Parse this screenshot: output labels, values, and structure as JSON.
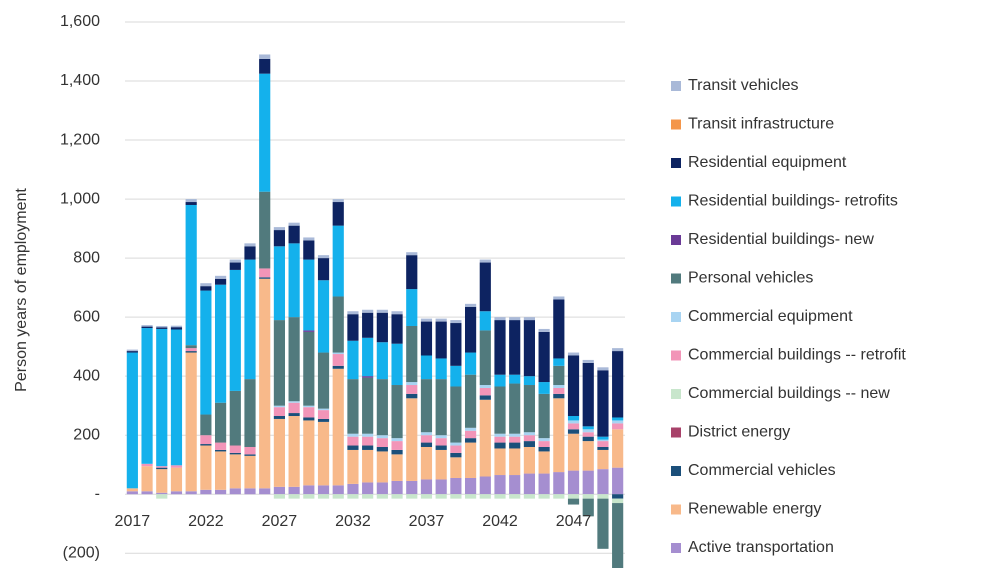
{
  "chart_data": {
    "type": "stacked_bar",
    "y_label": "Person years of employment",
    "categories": [
      2017,
      null,
      null,
      null,
      null,
      2022,
      null,
      null,
      null,
      null,
      2027,
      null,
      null,
      null,
      null,
      2032,
      null,
      null,
      null,
      null,
      2037,
      null,
      null,
      null,
      null,
      2042,
      null,
      null,
      null,
      null,
      2047,
      null,
      null,
      null
    ],
    "ylim": [
      -250,
      1600
    ],
    "yticks": [
      {
        "value": -200,
        "label": "(200)"
      },
      {
        "value": 0,
        "label": "-"
      },
      200,
      400,
      600,
      800,
      {
        "value": 1000,
        "label": "1,000"
      },
      {
        "value": 1200,
        "label": "1,200"
      },
      {
        "value": 1400,
        "label": "1,400"
      },
      {
        "value": 1600,
        "label": "1,600"
      }
    ],
    "grid": true,
    "legend": "right",
    "series": [
      {
        "name": "Transit vehicles",
        "color": "#a9b9d8",
        "values": [
          5,
          5,
          5,
          5,
          10,
          10,
          10,
          10,
          10,
          15,
          10,
          10,
          10,
          10,
          10,
          10,
          10,
          10,
          10,
          10,
          10,
          10,
          10,
          10,
          10,
          10,
          10,
          10,
          10,
          10,
          10,
          10,
          10,
          10
        ]
      },
      {
        "name": "Transit infrastructure",
        "color": "#f4964a",
        "values": [
          0,
          0,
          0,
          0,
          0,
          0,
          0,
          0,
          0,
          0,
          0,
          0,
          0,
          0,
          0,
          0,
          0,
          0,
          0,
          0,
          0,
          0,
          0,
          0,
          0,
          0,
          0,
          0,
          0,
          0,
          0,
          0,
          0,
          0
        ]
      },
      {
        "name": "Residential equipment",
        "color": "#0d2361",
        "values": [
          5,
          5,
          5,
          8,
          10,
          15,
          20,
          25,
          45,
          50,
          55,
          60,
          65,
          75,
          80,
          90,
          85,
          100,
          100,
          115,
          115,
          125,
          145,
          155,
          165,
          185,
          185,
          190,
          170,
          200,
          205,
          215,
          225,
          225
        ]
      },
      {
        "name": "Residential buildings- retrofits",
        "color": "#14b1ec",
        "values": [
          460,
          460,
          465,
          460,
          475,
          420,
          400,
          410,
          405,
          400,
          250,
          250,
          240,
          245,
          240,
          130,
          130,
          125,
          140,
          125,
          80,
          70,
          70,
          75,
          65,
          40,
          30,
          30,
          40,
          25,
          15,
          10,
          10,
          10
        ]
      },
      {
        "name": "Residential buildings- new",
        "color": "#6a3a96",
        "values": [
          0,
          0,
          0,
          0,
          0,
          0,
          0,
          0,
          0,
          0,
          0,
          0,
          5,
          0,
          0,
          0,
          5,
          0,
          0,
          0,
          0,
          0,
          0,
          0,
          0,
          0,
          0,
          0,
          0,
          0,
          0,
          0,
          0,
          0
        ]
      },
      {
        "name": "Personal vehicles",
        "color": "#517a7d",
        "values": [
          0,
          0,
          0,
          0,
          10,
          70,
          135,
          185,
          230,
          260,
          290,
          285,
          250,
          190,
          190,
          185,
          190,
          190,
          180,
          190,
          180,
          190,
          190,
          180,
          185,
          160,
          170,
          160,
          150,
          65,
          -20,
          -60,
          -170,
          -250
        ]
      },
      {
        "name": "Commercial equipment",
        "color": "#a8d4f2",
        "values": [
          0,
          0,
          0,
          0,
          0,
          0,
          0,
          0,
          0,
          0,
          5,
          5,
          5,
          5,
          5,
          10,
          10,
          10,
          10,
          10,
          10,
          10,
          10,
          10,
          10,
          10,
          10,
          10,
          10,
          10,
          10,
          10,
          5,
          10
        ]
      },
      {
        "name": "Commercial buildings -- retrofit",
        "color": "#f295b8",
        "values": [
          0,
          8,
          5,
          8,
          10,
          30,
          25,
          25,
          25,
          30,
          30,
          35,
          35,
          30,
          40,
          30,
          30,
          30,
          30,
          30,
          25,
          25,
          25,
          25,
          25,
          20,
          20,
          20,
          20,
          20,
          20,
          15,
          20,
          20
        ]
      },
      {
        "name": "Commercial buildings -- new",
        "color": "#c8e6cc",
        "values": [
          0,
          0,
          -15,
          0,
          0,
          0,
          0,
          0,
          0,
          0,
          -15,
          -15,
          -15,
          -15,
          -15,
          -15,
          -15,
          -15,
          -15,
          -15,
          -15,
          -15,
          -15,
          -15,
          -15,
          -15,
          -15,
          -15,
          -15,
          -15,
          -15,
          -15,
          -15,
          -15
        ]
      },
      {
        "name": "District energy",
        "color": "#a8426a",
        "values": [
          0,
          0,
          0,
          0,
          0,
          0,
          0,
          0,
          0,
          0,
          0,
          0,
          0,
          0,
          0,
          0,
          0,
          0,
          0,
          0,
          0,
          0,
          0,
          0,
          0,
          0,
          0,
          0,
          0,
          0,
          0,
          0,
          0,
          0
        ]
      },
      {
        "name": "Commercial vehicles",
        "color": "#1b4f7a",
        "values": [
          0,
          0,
          5,
          0,
          5,
          5,
          5,
          5,
          5,
          5,
          10,
          10,
          10,
          10,
          10,
          15,
          15,
          15,
          15,
          15,
          15,
          15,
          15,
          15,
          15,
          20,
          20,
          20,
          15,
          15,
          15,
          15,
          10,
          -15
        ]
      },
      {
        "name": "Renewable energy",
        "color": "#f8b98a",
        "values": [
          10,
          85,
          80,
          80,
          470,
          150,
          130,
          115,
          110,
          710,
          230,
          240,
          220,
          215,
          395,
          115,
          110,
          105,
          90,
          280,
          110,
          100,
          70,
          120,
          260,
          90,
          90,
          90,
          75,
          250,
          125,
          100,
          65,
          130
        ]
      },
      {
        "name": "Active transportation",
        "color": "#a58ed0",
        "values": [
          10,
          10,
          5,
          10,
          10,
          15,
          15,
          20,
          20,
          20,
          25,
          25,
          30,
          30,
          30,
          35,
          40,
          40,
          45,
          45,
          50,
          50,
          55,
          55,
          60,
          65,
          65,
          70,
          70,
          75,
          80,
          80,
          85,
          90
        ]
      }
    ]
  }
}
